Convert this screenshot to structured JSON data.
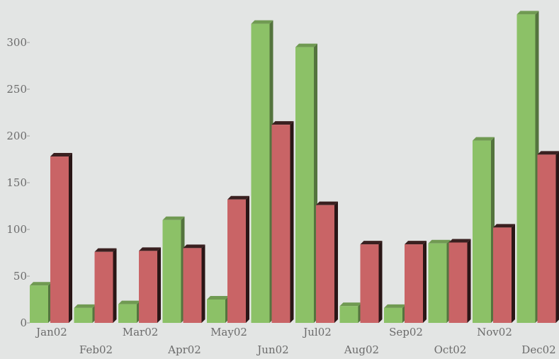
{
  "chart_data": {
    "type": "bar",
    "categories": [
      "Jan02",
      "Feb02",
      "Mar02",
      "Apr02",
      "May02",
      "Jun02",
      "Jul02",
      "Aug02",
      "Sep02",
      "Oct02",
      "Nov02",
      "Dec02"
    ],
    "series": [
      {
        "color": "#8cc167",
        "values": [
          40,
          16,
          20,
          110,
          25,
          320,
          295,
          18,
          16,
          85,
          195,
          330
        ]
      },
      {
        "color": "#c96466",
        "values": [
          178,
          76,
          77,
          80,
          132,
          212,
          126,
          84,
          84,
          86,
          102,
          180
        ]
      }
    ],
    "ylim": [
      0,
      330
    ],
    "yticks": [
      0,
      50,
      100,
      150,
      200,
      250,
      300
    ],
    "grid": false,
    "legend": "none"
  }
}
